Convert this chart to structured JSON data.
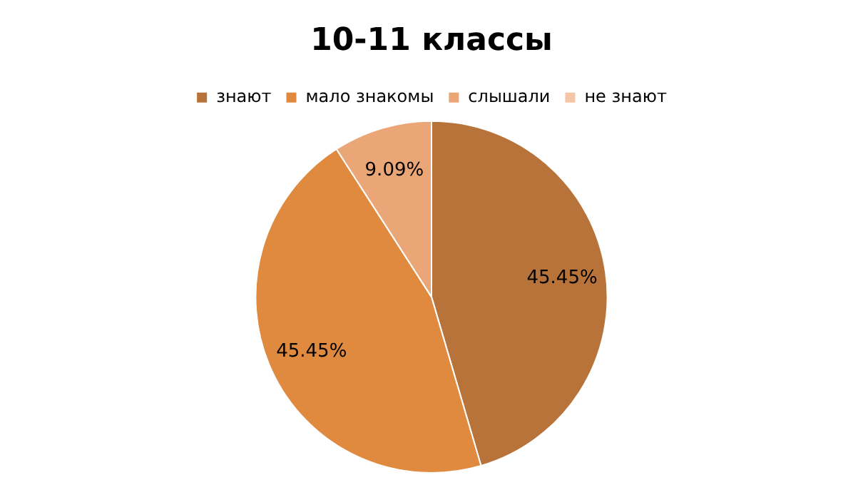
{
  "chart_data": {
    "type": "pie",
    "title": "10-11 классы",
    "categories": [
      "знают",
      "мало знакомы",
      "слышали",
      "не знают"
    ],
    "values": [
      45.45,
      45.45,
      9.09,
      0
    ],
    "value_labels": [
      "45.45%",
      "45.45%",
      "9.09%",
      null
    ],
    "colors": [
      "#b8733a",
      "#df8a3f",
      "#eba677",
      "#f5c5a8"
    ],
    "legend": "top"
  }
}
